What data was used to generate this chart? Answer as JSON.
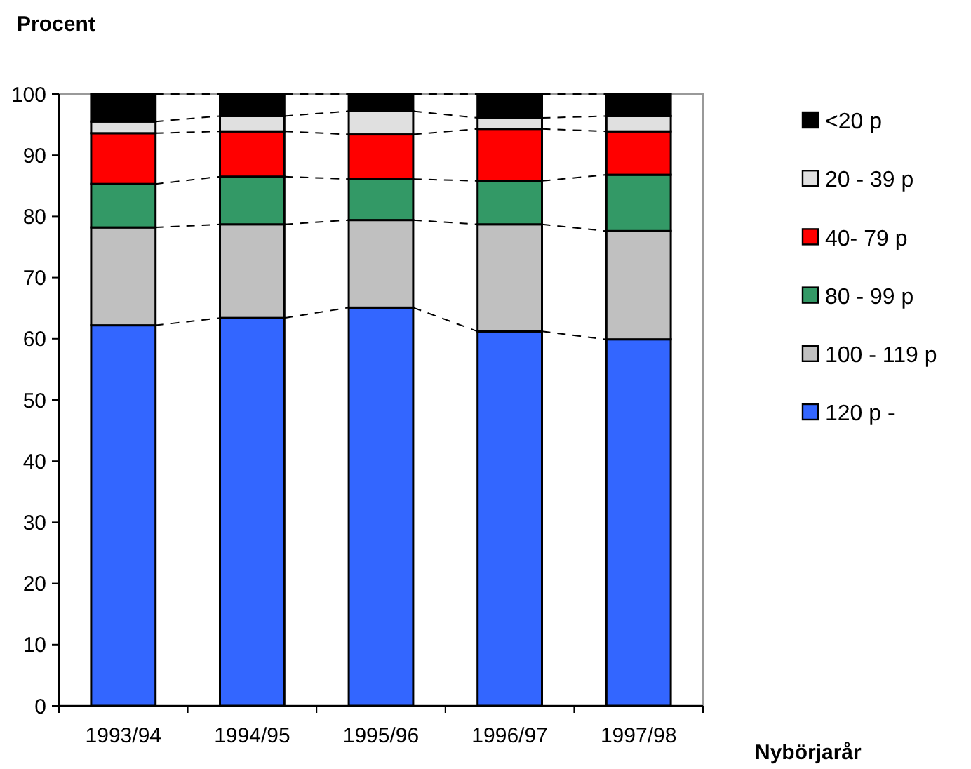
{
  "chart_data": {
    "type": "bar",
    "stacked": true,
    "ylabel": "Procent",
    "xlabel": "Nybörjarår",
    "categories": [
      "1993/94",
      "1994/95",
      "1995/96",
      "1996/97",
      "1997/98"
    ],
    "series": [
      {
        "name": "120 p -",
        "color": "#3366ff",
        "values": [
          62.2,
          63.4,
          65.1,
          61.2,
          59.9
        ]
      },
      {
        "name": "100 - 119 p",
        "color": "#c0c0c0",
        "values": [
          16.0,
          15.3,
          14.3,
          17.5,
          17.7
        ]
      },
      {
        "name": "80 - 99 p",
        "color": "#339966",
        "values": [
          7.1,
          7.8,
          6.7,
          7.1,
          9.2
        ]
      },
      {
        "name": "40- 79 p",
        "color": "#ff0000",
        "values": [
          8.3,
          7.4,
          7.3,
          8.5,
          7.1
        ]
      },
      {
        "name": "20 - 39 p",
        "color": "#e0e0e0",
        "values": [
          1.9,
          2.5,
          3.8,
          1.8,
          2.5
        ]
      },
      {
        "name": "<20 p",
        "color": "#000000",
        "values": [
          4.5,
          3.6,
          2.8,
          3.9,
          3.6
        ]
      }
    ],
    "ylim": [
      0,
      100
    ],
    "yticks": [
      0,
      10,
      20,
      30,
      40,
      50,
      60,
      70,
      80,
      90,
      100
    ],
    "grid": false,
    "legend": "right"
  }
}
